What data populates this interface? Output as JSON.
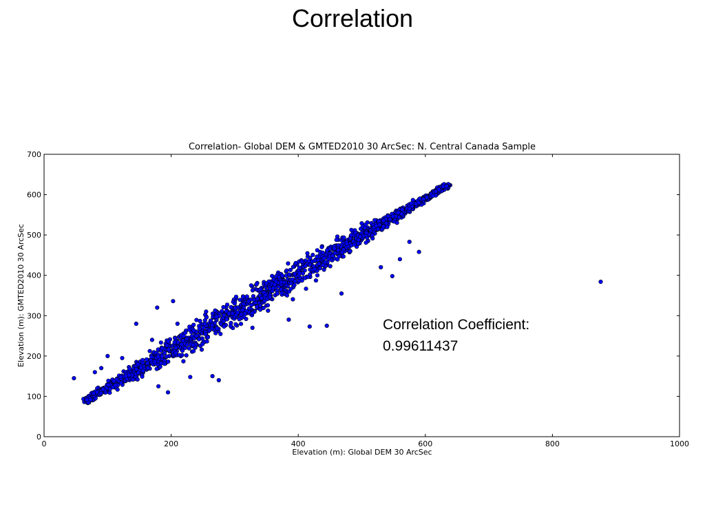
{
  "slide": {
    "title": "Correlation"
  },
  "annotation": {
    "line1": "Correlation Coefficient:",
    "line2": "0.99611437"
  },
  "chart_data": {
    "type": "scatter",
    "title": "Correlation- Global DEM & GMTED2010 30 ArcSec: N. Central Canada Sample",
    "xlabel": "Elevation (m): Global DEM 30 ArcSec",
    "ylabel": "Elevation (m): GMTED2010 30 ArcSec",
    "xlim": [
      0,
      1000
    ],
    "ylim": [
      0,
      700
    ],
    "xticks": [
      "0",
      "200",
      "400",
      "600",
      "800",
      "1000"
    ],
    "yticks": [
      "0",
      "100",
      "200",
      "300",
      "400",
      "500",
      "600",
      "700"
    ],
    "grid": false,
    "marker_color": "#0000ff",
    "marker_edge": "#000000",
    "trend": {
      "x_start": 65,
      "x_end": 635,
      "y_start": 88,
      "y_end": 624
    },
    "outliers": [
      [
        47,
        145
      ],
      [
        876,
        384
      ],
      [
        178,
        320
      ],
      [
        203,
        336
      ],
      [
        548,
        398
      ],
      [
        590,
        458
      ],
      [
        575,
        483
      ],
      [
        530,
        420
      ],
      [
        560,
        440
      ],
      [
        468,
        355
      ],
      [
        418,
        273
      ],
      [
        445,
        275
      ],
      [
        385,
        290
      ],
      [
        328,
        270
      ],
      [
        275,
        140
      ],
      [
        265,
        150
      ],
      [
        230,
        148
      ],
      [
        195,
        110
      ],
      [
        180,
        125
      ],
      [
        155,
        190
      ],
      [
        170,
        240
      ],
      [
        210,
        280
      ],
      [
        145,
        280
      ],
      [
        100,
        200
      ],
      [
        123,
        195
      ],
      [
        80,
        160
      ],
      [
        90,
        170
      ],
      [
        255,
        310
      ],
      [
        300,
        330
      ],
      [
        350,
        380
      ]
    ]
  }
}
